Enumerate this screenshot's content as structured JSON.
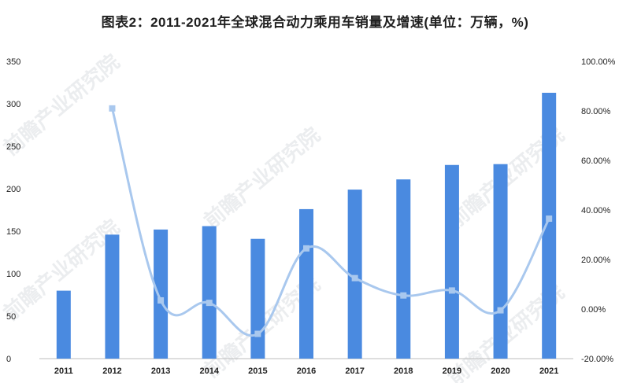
{
  "title": "图表2：2011-2021年全球混合动力乘用车销量及增速(单位：万辆，%)",
  "colors": {
    "bar": "#4a8ae0",
    "line": "#a9c8ee",
    "marker": "#a9c8ee"
  },
  "chart_data": {
    "type": "bar",
    "categories": [
      "2011",
      "2012",
      "2013",
      "2014",
      "2015",
      "2016",
      "2017",
      "2018",
      "2019",
      "2020",
      "2021"
    ],
    "series": [
      {
        "type": "bar",
        "axis": "left",
        "values": [
          80,
          146,
          152,
          156,
          141,
          176,
          199,
          211,
          228,
          229,
          313
        ]
      },
      {
        "type": "line",
        "axis": "right",
        "values": [
          null,
          81.0,
          3.5,
          2.5,
          -10.0,
          24.5,
          12.5,
          5.5,
          7.5,
          -0.5,
          36.5
        ]
      }
    ],
    "yleft": {
      "lim": [
        0,
        350
      ],
      "ticks": [
        "0",
        "50",
        "100",
        "150",
        "200",
        "250",
        "300",
        "350"
      ]
    },
    "yright": {
      "lim": [
        -20,
        100
      ],
      "ticks": [
        "-20.00%",
        "0.00%",
        "20.00%",
        "40.00%",
        "60.00%",
        "80.00%",
        "100.00%"
      ]
    },
    "grid": false,
    "legend": "none"
  }
}
